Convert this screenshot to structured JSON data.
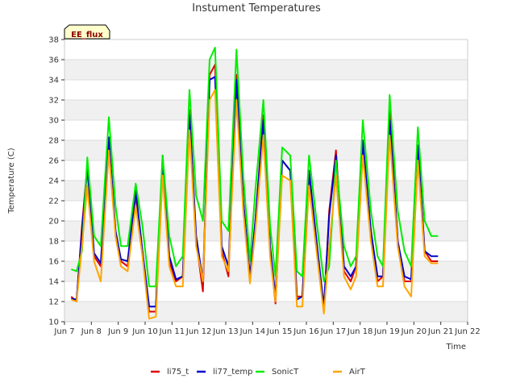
{
  "chart_data": {
    "type": "line",
    "title": "Instument Temperatures",
    "xlabel": "Time",
    "ylabel": "Temperature (C)",
    "badge": "EE_flux",
    "ylim": [
      10,
      38
    ],
    "xlim": [
      7,
      22
    ],
    "yticks": [
      10,
      12,
      14,
      16,
      18,
      20,
      22,
      24,
      26,
      28,
      30,
      32,
      34,
      36,
      38
    ],
    "xticks": [
      {
        "value": 7,
        "label": "Jun 7"
      },
      {
        "value": 8,
        "label": "Jun 8"
      },
      {
        "value": 9,
        "label": "Jun 9"
      },
      {
        "value": 10,
        "label": "Jun 10"
      },
      {
        "value": 11,
        "label": "Jun 11"
      },
      {
        "value": 12,
        "label": "Jun 12"
      },
      {
        "value": 13,
        "label": "Jun 13"
      },
      {
        "value": 14,
        "label": "Jun 14"
      },
      {
        "value": 15,
        "label": "Jun 15"
      },
      {
        "value": 16,
        "label": "Jun 16"
      },
      {
        "value": 17,
        "label": "Jun 17"
      },
      {
        "value": 18,
        "label": "Jun 18"
      },
      {
        "value": 19,
        "label": "Jun 19"
      },
      {
        "value": 20,
        "label": "Jun 20"
      },
      {
        "value": 21,
        "label": "Jun 21"
      },
      {
        "value": 22,
        "label": "Jun 22"
      }
    ],
    "grid": true,
    "legend_position": "bottom",
    "series": [
      {
        "name": "li75_t",
        "color": "#dd0000",
        "x": [
          7.25,
          7.45,
          7.65,
          7.85,
          8.1,
          8.35,
          8.65,
          8.9,
          9.1,
          9.35,
          9.65,
          9.9,
          10.15,
          10.4,
          10.65,
          10.9,
          11.15,
          11.4,
          11.65,
          11.9,
          12.15,
          12.4,
          12.6,
          12.85,
          13.1,
          13.4,
          13.65,
          13.9,
          14.1,
          14.4,
          14.65,
          14.85,
          15.1,
          15.4,
          15.65,
          15.85,
          16.1,
          16.4,
          16.65,
          16.85,
          17.1,
          17.4,
          17.65,
          17.85,
          18.1,
          18.4,
          18.65,
          18.85,
          19.1,
          19.4,
          19.65,
          19.9,
          20.15,
          20.4,
          20.65,
          20.9
        ],
        "y": [
          12.5,
          12.0,
          19.5,
          25.5,
          16.5,
          15.5,
          27.0,
          19.0,
          16.0,
          15.5,
          22.5,
          17.0,
          11.0,
          11.0,
          26.5,
          16.0,
          14.0,
          14.5,
          31.0,
          18.0,
          13.0,
          34.5,
          35.5,
          17.0,
          14.5,
          34.5,
          22.0,
          14.0,
          20.0,
          30.5,
          17.0,
          11.8,
          26.0,
          25.0,
          12.5,
          12.5,
          24.5,
          17.0,
          11.0,
          21.0,
          27.0,
          15.0,
          14.0,
          15.5,
          27.5,
          19.0,
          14.0,
          14.5,
          31.0,
          18.0,
          14.0,
          14.0,
          27.5,
          17.0,
          16.0,
          16.0
        ]
      },
      {
        "name": "li77_temp",
        "color": "#0000cc",
        "x": [
          7.25,
          7.45,
          7.65,
          7.85,
          8.1,
          8.35,
          8.65,
          8.9,
          9.1,
          9.35,
          9.65,
          9.9,
          10.15,
          10.4,
          10.65,
          10.9,
          11.15,
          11.4,
          11.65,
          11.9,
          12.15,
          12.4,
          12.6,
          12.85,
          13.1,
          13.4,
          13.65,
          13.9,
          14.1,
          14.4,
          14.65,
          14.85,
          15.1,
          15.4,
          15.65,
          15.85,
          16.1,
          16.4,
          16.65,
          16.85,
          17.1,
          17.4,
          17.65,
          17.85,
          18.1,
          18.4,
          18.65,
          18.85,
          19.1,
          19.4,
          19.65,
          19.9,
          20.15,
          20.4,
          20.65,
          20.9
        ],
        "y": [
          12.3,
          12.2,
          19.0,
          25.2,
          16.8,
          15.8,
          28.3,
          19.0,
          16.2,
          16.0,
          23.0,
          17.0,
          11.5,
          11.5,
          26.0,
          16.5,
          14.2,
          14.5,
          30.5,
          18.5,
          14.0,
          34.0,
          34.3,
          17.5,
          15.5,
          34.0,
          22.0,
          14.5,
          20.0,
          30.0,
          17.5,
          12.5,
          26.0,
          25.0,
          12.2,
          12.5,
          25.0,
          17.5,
          11.5,
          20.5,
          26.5,
          15.5,
          14.5,
          15.5,
          28.0,
          19.0,
          14.5,
          14.5,
          30.0,
          18.0,
          14.5,
          14.2,
          27.5,
          17.0,
          16.5,
          16.5
        ]
      },
      {
        "name": "SonicT",
        "color": "#00ee00",
        "x": [
          7.25,
          7.45,
          7.65,
          7.85,
          8.1,
          8.35,
          8.65,
          8.9,
          9.1,
          9.35,
          9.65,
          9.9,
          10.15,
          10.4,
          10.65,
          10.9,
          11.15,
          11.4,
          11.65,
          11.9,
          12.15,
          12.4,
          12.6,
          12.85,
          13.1,
          13.4,
          13.65,
          13.9,
          14.1,
          14.4,
          14.65,
          14.85,
          15.1,
          15.4,
          15.65,
          15.85,
          16.1,
          16.4,
          16.65,
          16.85,
          17.1,
          17.4,
          17.65,
          17.85,
          18.1,
          18.4,
          18.65,
          18.85,
          19.1,
          19.4,
          19.65,
          19.9,
          20.15,
          20.4,
          20.65,
          20.9
        ],
        "y": [
          15.2,
          15.0,
          17.0,
          26.3,
          18.5,
          17.5,
          30.3,
          21.5,
          17.5,
          17.5,
          23.7,
          19.5,
          13.5,
          13.5,
          26.5,
          18.5,
          15.5,
          16.5,
          33.0,
          22.5,
          20.0,
          36.0,
          37.2,
          20.0,
          19.0,
          37.0,
          24.5,
          16.0,
          23.0,
          32.0,
          19.5,
          14.5,
          27.3,
          26.5,
          15.0,
          14.5,
          26.5,
          19.5,
          14.0,
          15.5,
          26.0,
          17.5,
          15.5,
          16.5,
          30.0,
          21.0,
          16.5,
          15.5,
          32.5,
          21.0,
          17.0,
          15.5,
          29.3,
          20.0,
          18.5,
          18.5
        ]
      },
      {
        "name": "AirT",
        "color": "#ffa500",
        "x": [
          7.25,
          7.45,
          7.65,
          7.85,
          8.1,
          8.35,
          8.65,
          8.9,
          9.1,
          9.35,
          9.65,
          9.9,
          10.15,
          10.4,
          10.65,
          10.9,
          11.15,
          11.4,
          11.65,
          11.9,
          12.15,
          12.4,
          12.6,
          12.85,
          13.1,
          13.4,
          13.65,
          13.9,
          14.1,
          14.4,
          14.65,
          14.85,
          15.1,
          15.4,
          15.65,
          15.85,
          16.1,
          16.4,
          16.65,
          16.85,
          17.1,
          17.4,
          17.65,
          17.85,
          18.1,
          18.4,
          18.65,
          18.85,
          19.1,
          19.4,
          19.65,
          19.9,
          20.15,
          20.4,
          20.65,
          20.9
        ],
        "y": [
          12.2,
          12.0,
          17.5,
          23.5,
          16.0,
          14.0,
          27.0,
          18.5,
          15.5,
          15.0,
          21.5,
          16.5,
          10.3,
          10.5,
          24.5,
          15.5,
          13.5,
          13.5,
          29.0,
          17.5,
          14.0,
          32.0,
          33.0,
          16.5,
          15.0,
          32.0,
          21.0,
          13.8,
          19.0,
          28.5,
          16.5,
          12.0,
          24.5,
          24.0,
          11.5,
          11.5,
          23.5,
          16.5,
          10.8,
          17.5,
          24.5,
          14.5,
          13.2,
          14.5,
          26.5,
          18.0,
          13.5,
          13.5,
          28.5,
          17.5,
          13.5,
          12.5,
          26.0,
          16.5,
          15.8,
          15.8
        ]
      }
    ]
  }
}
